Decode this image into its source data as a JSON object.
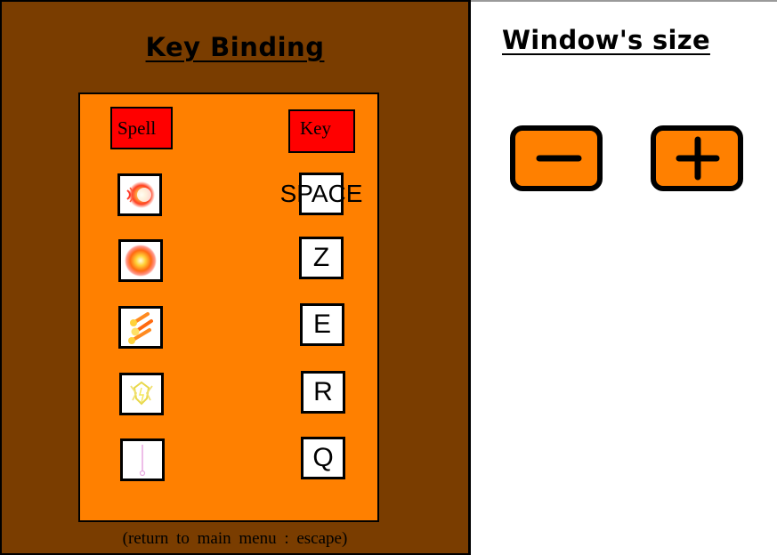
{
  "key_binding": {
    "title": "Key Binding",
    "spell_header": "Spell",
    "key_header": "Key",
    "rows": [
      {
        "spell_icon": "fire-burst-spell-icon",
        "key": "SPACE"
      },
      {
        "spell_icon": "fireball-spell-icon",
        "key": "Z"
      },
      {
        "spell_icon": "fire-meteor-spell-icon",
        "key": "E"
      },
      {
        "spell_icon": "lightning-shield-spell-icon",
        "key": "R"
      },
      {
        "spell_icon": "light-beam-spell-icon",
        "key": "Q"
      }
    ],
    "hint": "(return to main menu : escape)"
  },
  "window_size": {
    "title": "Window's size",
    "decrease_icon": "minus-icon",
    "increase_icon": "plus-icon"
  },
  "colors": {
    "panel_brown": "#7a3d00",
    "panel_orange": "#ff8000",
    "header_red": "#ff0000"
  }
}
